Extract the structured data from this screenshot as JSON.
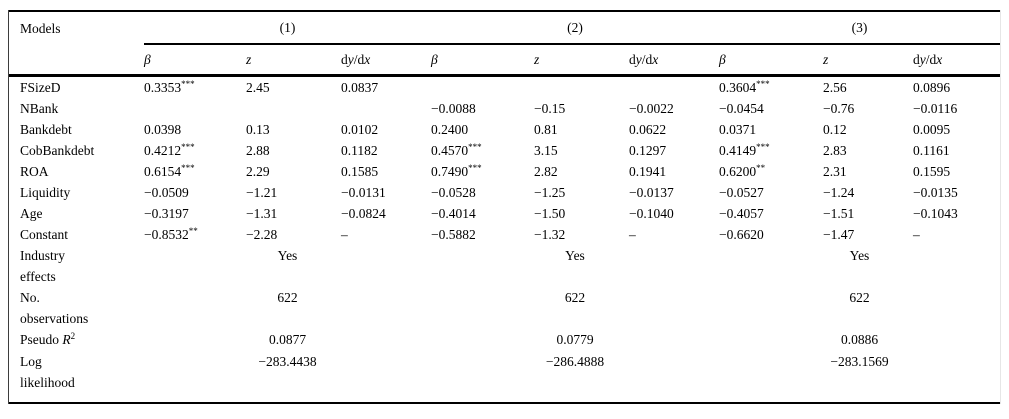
{
  "colors": {
    "text": "#000000",
    "background": "#ffffff",
    "rule": "#000000"
  },
  "table": {
    "corner_label": "Models",
    "groups": [
      "(1)",
      "(2)",
      "(3)"
    ],
    "subheaders": [
      [
        {
          "t": "β",
          "i": true
        }
      ],
      [
        {
          "t": "z",
          "i": true
        }
      ],
      [
        {
          "t": "d"
        },
        {
          "t": "y",
          "i": true
        },
        {
          "t": "/d"
        },
        {
          "t": "x",
          "i": true
        }
      ]
    ],
    "rows": [
      {
        "label_lines": [
          "FSizeD"
        ],
        "cells": [
          {
            "v": "0.3353",
            "s": "***"
          },
          {
            "v": "2.45"
          },
          {
            "v": "0.0837"
          },
          null,
          null,
          null,
          {
            "v": "0.3604",
            "s": "***"
          },
          {
            "v": "2.56"
          },
          {
            "v": "0.0896"
          }
        ]
      },
      {
        "label_lines": [
          "NBank"
        ],
        "cells": [
          null,
          null,
          null,
          {
            "v": "−0.0088"
          },
          {
            "v": "−0.15"
          },
          {
            "v": "−0.0022"
          },
          {
            "v": "−0.0454"
          },
          {
            "v": "−0.76"
          },
          {
            "v": "−0.0116"
          }
        ]
      },
      {
        "label_lines": [
          "Bankdebt"
        ],
        "cells": [
          {
            "v": "0.0398"
          },
          {
            "v": "0.13"
          },
          {
            "v": "0.0102"
          },
          {
            "v": "0.2400"
          },
          {
            "v": "0.81"
          },
          {
            "v": "0.0622"
          },
          {
            "v": "0.0371"
          },
          {
            "v": "0.12"
          },
          {
            "v": "0.0095"
          }
        ]
      },
      {
        "label_lines": [
          "CobBankdebt"
        ],
        "cells": [
          {
            "v": "0.4212",
            "s": "***"
          },
          {
            "v": "2.88"
          },
          {
            "v": "0.1182"
          },
          {
            "v": "0.4570",
            "s": "***"
          },
          {
            "v": "3.15"
          },
          {
            "v": "0.1297"
          },
          {
            "v": "0.4149",
            "s": "***"
          },
          {
            "v": "2.83"
          },
          {
            "v": "0.1161"
          }
        ]
      },
      {
        "label_lines": [
          "ROA"
        ],
        "cells": [
          {
            "v": "0.6154",
            "s": "***"
          },
          {
            "v": "2.29"
          },
          {
            "v": "0.1585"
          },
          {
            "v": "0.7490",
            "s": "***"
          },
          {
            "v": "2.82"
          },
          {
            "v": "0.1941"
          },
          {
            "v": "0.6200",
            "s": "**"
          },
          {
            "v": "2.31"
          },
          {
            "v": "0.1595"
          }
        ]
      },
      {
        "label_lines": [
          "Liquidity"
        ],
        "cells": [
          {
            "v": "−0.0509"
          },
          {
            "v": "−1.21"
          },
          {
            "v": "−0.0131"
          },
          {
            "v": "−0.0528"
          },
          {
            "v": "−1.25"
          },
          {
            "v": "−0.0137"
          },
          {
            "v": "−0.0527"
          },
          {
            "v": "−1.24"
          },
          {
            "v": "−0.0135"
          }
        ]
      },
      {
        "label_lines": [
          "Age"
        ],
        "cells": [
          {
            "v": "−0.3197"
          },
          {
            "v": "−1.31"
          },
          {
            "v": "−0.0824"
          },
          {
            "v": "−0.4014"
          },
          {
            "v": "−1.50"
          },
          {
            "v": "−0.1040"
          },
          {
            "v": "−0.4057"
          },
          {
            "v": "−1.51"
          },
          {
            "v": "−0.1043"
          }
        ]
      },
      {
        "label_lines": [
          "Constant"
        ],
        "cells": [
          {
            "v": "−0.8532",
            "s": "**"
          },
          {
            "v": "−2.28"
          },
          {
            "v": "–"
          },
          {
            "v": "−0.5882"
          },
          {
            "v": "−1.32"
          },
          {
            "v": "–"
          },
          {
            "v": "−0.6620"
          },
          {
            "v": "−1.47"
          },
          {
            "v": "–"
          }
        ]
      },
      {
        "label_lines": [
          "Industry",
          "effects"
        ],
        "group_values": [
          "Yes",
          "Yes",
          "Yes"
        ]
      },
      {
        "label_lines": [
          "No.",
          "observations"
        ],
        "group_values": [
          "622",
          "622",
          "622"
        ]
      },
      {
        "label_lines": [
          [
            {
              "t": "Pseudo "
            },
            {
              "t": "R",
              "i": true
            },
            {
              "t": "2",
              "sup": true
            }
          ]
        ],
        "group_values": [
          "0.0877",
          "0.0779",
          "0.0886"
        ]
      },
      {
        "label_lines": [
          "Log",
          "likelihood"
        ],
        "group_values": [
          "−283.4438",
          "−286.4888",
          "−283.1569"
        ]
      }
    ]
  }
}
